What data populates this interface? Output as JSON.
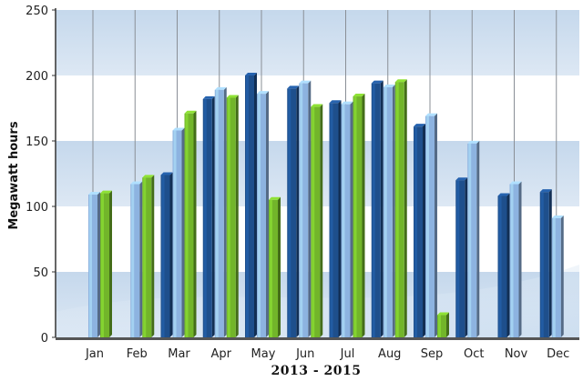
{
  "chart_data": {
    "type": "bar",
    "xlabel": "2013 - 2015",
    "ylabel": "Megawatt hours",
    "ylim": [
      0,
      250
    ],
    "yticks": [
      0,
      50,
      100,
      150,
      200,
      250
    ],
    "grid": "bands",
    "legend": "none",
    "categories": [
      "Jan",
      "Feb",
      "Mar",
      "Apr",
      "May",
      "Jun",
      "Jul",
      "Aug",
      "Sep",
      "Oct",
      "Nov",
      "Dec"
    ],
    "series": [
      {
        "color": "#1e4f8c",
        "values": [
          null,
          null,
          124,
          182,
          200,
          190,
          179,
          194,
          161,
          120,
          108,
          111
        ]
      },
      {
        "color": "#8db3e0",
        "values": [
          109,
          117,
          158,
          189,
          186,
          194,
          178,
          191,
          169,
          148,
          117,
          91
        ]
      },
      {
        "color": "#72b52a",
        "values": [
          110,
          122,
          171,
          183,
          105,
          176,
          184,
          195,
          17,
          null,
          null,
          null
        ]
      }
    ]
  }
}
